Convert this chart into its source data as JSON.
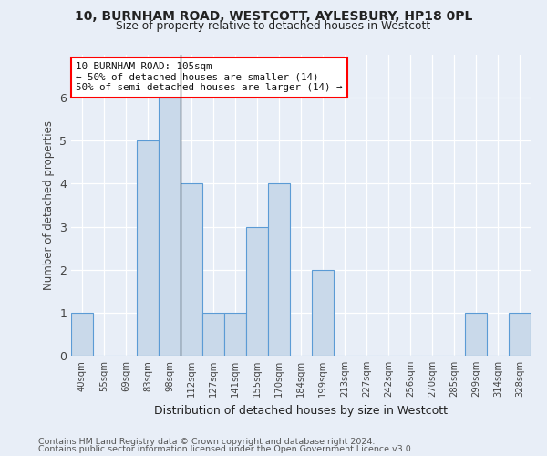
{
  "title1": "10, BURNHAM ROAD, WESTCOTT, AYLESBURY, HP18 0PL",
  "title2": "Size of property relative to detached houses in Westcott",
  "xlabel": "Distribution of detached houses by size in Westcott",
  "ylabel": "Number of detached properties",
  "categories": [
    "40sqm",
    "55sqm",
    "69sqm",
    "83sqm",
    "98sqm",
    "112sqm",
    "127sqm",
    "141sqm",
    "155sqm",
    "170sqm",
    "184sqm",
    "199sqm",
    "213sqm",
    "227sqm",
    "242sqm",
    "256sqm",
    "270sqm",
    "285sqm",
    "299sqm",
    "314sqm",
    "328sqm"
  ],
  "values": [
    1,
    0,
    0,
    5,
    6,
    4,
    1,
    1,
    3,
    4,
    0,
    2,
    0,
    0,
    0,
    0,
    0,
    0,
    1,
    0,
    1
  ],
  "bar_color": "#c9d9ea",
  "bar_edge_color": "#5b9bd5",
  "annotation_text": "10 BURNHAM ROAD: 105sqm\n← 50% of detached houses are smaller (14)\n50% of semi-detached houses are larger (14) →",
  "annotation_box_color": "white",
  "annotation_box_edge_color": "red",
  "vline_bar_index": 4,
  "ylim": [
    0,
    7
  ],
  "yticks": [
    0,
    1,
    2,
    3,
    4,
    5,
    6
  ],
  "background_color": "#e8eef7",
  "grid_color": "#ffffff",
  "footer1": "Contains HM Land Registry data © Crown copyright and database right 2024.",
  "footer2": "Contains public sector information licensed under the Open Government Licence v3.0."
}
